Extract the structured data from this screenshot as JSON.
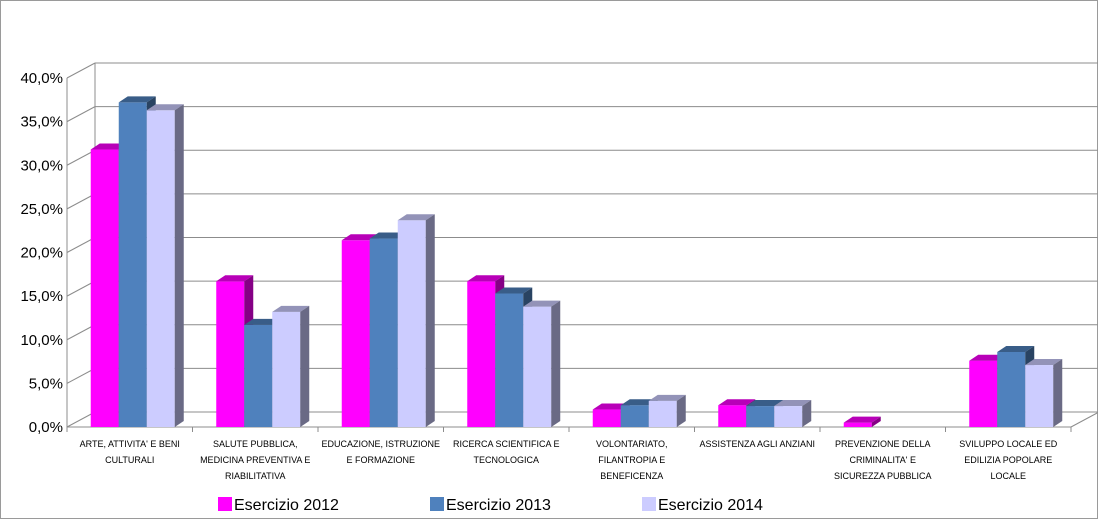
{
  "chart_data": {
    "type": "bar",
    "categories": [
      [
        "ARTE, ATTIVITA' E BENI",
        "CULTURALI"
      ],
      [
        "SALUTE PUBBLICA,",
        "MEDICINA PREVENTIVA E",
        "RIABILITATIVA"
      ],
      [
        "EDUCAZIONE, ISTRUZIONE",
        "E FORMAZIONE"
      ],
      [
        "RICERCA SCIENTIFICA E",
        "TECNOLOGICA"
      ],
      [
        "VOLONTARIATO,",
        "FILANTROPIA E",
        "BENEFICENZA"
      ],
      [
        "ASSISTENZA AGLI ANZIANI"
      ],
      [
        "PREVENZIONE DELLA",
        "CRIMINALITA' E",
        "SICUREZZA PUBBLICA"
      ],
      [
        "SVILUPPO LOCALE ED",
        "EDILIZIA POPOLARE",
        "LOCALE"
      ]
    ],
    "series": [
      {
        "name": "Esercizio 2012",
        "color": "#ff00ff",
        "values": [
          31.8,
          16.7,
          21.4,
          16.7,
          2.0,
          2.5,
          0.5,
          7.6
        ]
      },
      {
        "name": "Esercizio 2013",
        "color": "#4f81bd",
        "values": [
          37.2,
          11.7,
          21.6,
          15.3,
          2.5,
          2.4,
          0.0,
          8.6
        ]
      },
      {
        "name": "Esercizio 2014",
        "color": "#ccccff",
        "values": [
          36.3,
          13.2,
          23.7,
          13.8,
          3.0,
          2.4,
          0.0,
          7.1
        ]
      }
    ],
    "y_ticks": [
      "0,0%",
      "5,0%",
      "10,0%",
      "15,0%",
      "20,0%",
      "25,0%",
      "30,0%",
      "35,0%",
      "40,0%"
    ],
    "ylim": [
      0,
      40
    ],
    "grid": true,
    "legend_position": "bottom",
    "title": "",
    "xlabel": "",
    "ylabel": ""
  }
}
